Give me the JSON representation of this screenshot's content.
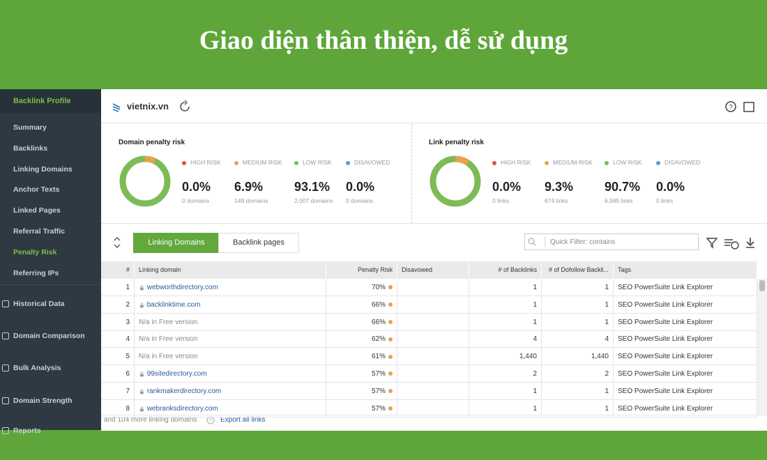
{
  "title": "Giao diện thân thiện, dễ sử dụng",
  "sidebar": {
    "section": "Backlink Profile",
    "items": [
      "Summary",
      "Backlinks",
      "Linking Domains",
      "Anchor Texts",
      "Linked Pages",
      "Referral Traffic",
      "Penalty Risk",
      "Referring IPs"
    ],
    "active": 6,
    "others": [
      "Historical Data",
      "Domain Comparison",
      "Bulk Analysis",
      "Domain Strength",
      "Reports"
    ]
  },
  "header": {
    "domain": "vietnix.vn"
  },
  "panels": [
    {
      "title": "Domain penalty risk",
      "stats": [
        {
          "label": "HIGH RISK",
          "value": 0,
          "value_label": "0.0%",
          "sub": "0 domains",
          "color": "#d9534f"
        },
        {
          "label": "MEDIUM RISK",
          "value": 6.9,
          "value_label": "6.9%",
          "sub": "148 domains",
          "color": "#e8a14a"
        },
        {
          "label": "LOW RISK",
          "value": 93.1,
          "value_label": "93.1%",
          "sub": "2,007 domains",
          "color": "#7dbb57"
        },
        {
          "label": "DISAVOWED",
          "value": 0,
          "value_label": "0.0%",
          "sub": "0 domains",
          "color": "#5b9bd5"
        }
      ]
    },
    {
      "title": "Link penalty risk",
      "stats": [
        {
          "label": "HIGH RISK",
          "value": 0,
          "value_label": "0.0%",
          "sub": "0 links",
          "color": "#d9534f"
        },
        {
          "label": "MEDIUM RISK",
          "value": 9.3,
          "value_label": "9.3%",
          "sub": "674 links",
          "color": "#e8a14a"
        },
        {
          "label": "LOW RISK",
          "value": 90.7,
          "value_label": "90.7%",
          "sub": "6,585 links",
          "color": "#7dbb57"
        },
        {
          "label": "DISAVOWED",
          "value": 0,
          "value_label": "0.0%",
          "sub": "0 links",
          "color": "#5b9bd5"
        }
      ]
    }
  ],
  "tabs": [
    "Linking Domains",
    "Backlink pages"
  ],
  "filter": "Quick Filter: contains",
  "table": {
    "columns": [
      "#",
      "Linking domain",
      "Penalty Risk",
      "Disavowed",
      "# of Backlinks",
      "# of Dofollow Backli...",
      "Tags"
    ],
    "rows": [
      {
        "n": "1",
        "domain": "webworthdirectory.com",
        "locked": true,
        "risk": "70%",
        "backlinks": "1",
        "dofollow": "1",
        "tags": "SEO PowerSuite Link Explorer"
      },
      {
        "n": "2",
        "domain": "backlinktime.com",
        "locked": true,
        "risk": "66%",
        "backlinks": "1",
        "dofollow": "1",
        "tags": "SEO PowerSuite Link Explorer"
      },
      {
        "n": "3",
        "domain": "N/a in Free version",
        "locked": false,
        "risk": "66%",
        "backlinks": "1",
        "dofollow": "1",
        "tags": "SEO PowerSuite Link Explorer"
      },
      {
        "n": "4",
        "domain": "N/a in Free version",
        "locked": false,
        "risk": "62%",
        "backlinks": "4",
        "dofollow": "4",
        "tags": "SEO PowerSuite Link Explorer"
      },
      {
        "n": "5",
        "domain": "N/a in Free version",
        "locked": false,
        "risk": "61%",
        "backlinks": "1,440",
        "dofollow": "1,440",
        "tags": "SEO PowerSuite Link Explorer"
      },
      {
        "n": "6",
        "domain": "99sitedirectory.com",
        "locked": true,
        "risk": "57%",
        "backlinks": "2",
        "dofollow": "2",
        "tags": "SEO PowerSuite Link Explorer"
      },
      {
        "n": "7",
        "domain": "rankmakerdirectory.com",
        "locked": true,
        "risk": "57%",
        "backlinks": "1",
        "dofollow": "1",
        "tags": "SEO PowerSuite Link Explorer"
      },
      {
        "n": "8",
        "domain": "webranksdirectory.com",
        "locked": true,
        "risk": "57%",
        "backlinks": "1",
        "dofollow": "1",
        "tags": "SEO PowerSuite Link Explorer"
      }
    ]
  },
  "footer": {
    "more": "and 104 more linking domains",
    "export": "Export all links"
  }
}
